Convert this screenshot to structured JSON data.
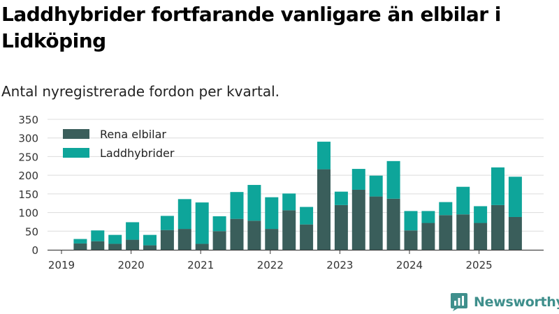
{
  "header": {
    "title": "Laddhybrider fortfarande vanligare än elbilar i Lidköping",
    "subtitle": "Antal nyregistrerade fordon per kvartal."
  },
  "brand": {
    "name": "Newsworthy",
    "color": "#3f8f8c"
  },
  "chart_data": {
    "type": "bar",
    "stacked": true,
    "title": "Laddhybrider fortfarande vanligare än elbilar i Lidköping",
    "subtitle": "Antal nyregistrerade fordon per kvartal.",
    "xlabel": "",
    "ylabel": "",
    "ylim": [
      0,
      350
    ],
    "yticks": [
      0,
      50,
      100,
      150,
      200,
      250,
      300,
      350
    ],
    "grid": true,
    "legend_position": "top-left",
    "x_tick_labels": [
      {
        "label": "2019",
        "index": 0
      },
      {
        "label": "2020",
        "index": 4
      },
      {
        "label": "2021",
        "index": 8
      },
      {
        "label": "2022",
        "index": 12
      },
      {
        "label": "2023",
        "index": 16
      },
      {
        "label": "2024",
        "index": 20
      },
      {
        "label": "2025",
        "index": 24
      }
    ],
    "categories": [
      "2019 Q1",
      "2019 Q2",
      "2019 Q3",
      "2019 Q4",
      "2020 Q1",
      "2020 Q2",
      "2020 Q3",
      "2020 Q4",
      "2021 Q1",
      "2021 Q2",
      "2021 Q3",
      "2021 Q4",
      "2022 Q1",
      "2022 Q2",
      "2022 Q3",
      "2022 Q4",
      "2023 Q1",
      "2023 Q2",
      "2023 Q3",
      "2023 Q4",
      "2024 Q1",
      "2024 Q2",
      "2024 Q3",
      "2024 Q4",
      "2025 Q1",
      "2025 Q2",
      "2025 Q3"
    ],
    "series": [
      {
        "name": "Rena elbilar",
        "color": "#3a5e5b",
        "values": [
          0,
          17,
          23,
          16,
          27,
          12,
          53,
          56,
          16,
          50,
          83,
          78,
          56,
          106,
          68,
          216,
          120,
          161,
          143,
          137,
          52,
          72,
          93,
          95,
          72,
          120,
          88
        ]
      },
      {
        "name": "Laddhybrider",
        "color": "#0ea59a",
        "values": [
          0,
          12,
          29,
          24,
          47,
          28,
          38,
          80,
          111,
          40,
          72,
          96,
          85,
          45,
          47,
          74,
          36,
          56,
          56,
          101,
          52,
          32,
          35,
          74,
          45,
          101,
          108
        ]
      }
    ]
  }
}
